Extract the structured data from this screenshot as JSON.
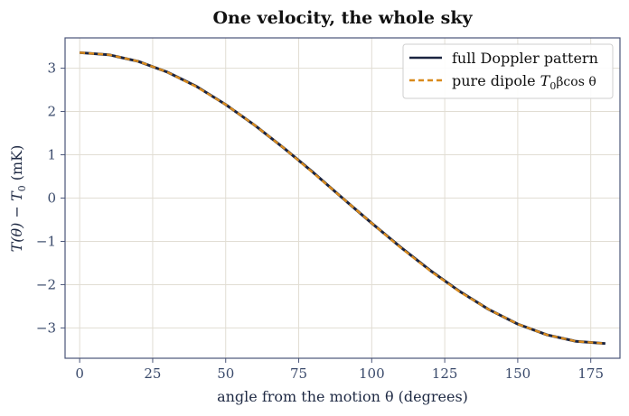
{
  "chart_data": {
    "type": "line",
    "title": "One velocity, the whole sky",
    "xlabel": "angle from the motion θ (degrees)",
    "ylabel_parts": [
      "T(θ) − T",
      "0",
      " (mK)"
    ],
    "xlim": [
      -5,
      185
    ],
    "ylim": [
      -3.7,
      3.7
    ],
    "xticks": [
      0,
      25,
      50,
      75,
      100,
      125,
      150,
      175
    ],
    "yticks": [
      -3,
      -2,
      -1,
      0,
      1,
      2,
      3
    ],
    "ytick_labels": [
      "−3",
      "−2",
      "−1",
      "0",
      "1",
      "2",
      "3"
    ],
    "grid": true,
    "legend_position": "top-right",
    "x": [
      0,
      10,
      20,
      30,
      40,
      50,
      60,
      70,
      80,
      90,
      100,
      110,
      120,
      130,
      140,
      150,
      160,
      170,
      180
    ],
    "series": [
      {
        "name": "full Doppler pattern",
        "style": "solid",
        "color": "#1b2440",
        "values": [
          3.36,
          3.31,
          3.16,
          2.91,
          2.58,
          2.16,
          1.68,
          1.15,
          0.59,
          0.0,
          -0.58,
          -1.14,
          -1.67,
          -2.15,
          -2.57,
          -2.91,
          -3.16,
          -3.31,
          -3.36
        ]
      },
      {
        "name": "pure dipole T0βcos θ",
        "legend_parts": [
          "pure dipole ",
          "T",
          "0",
          "βcos θ"
        ],
        "style": "dashed",
        "color": "#d98a1c",
        "values": [
          3.36,
          3.31,
          3.16,
          2.91,
          2.57,
          2.16,
          1.68,
          1.15,
          0.58,
          0.0,
          -0.58,
          -1.15,
          -1.68,
          -2.16,
          -2.57,
          -2.91,
          -3.16,
          -3.31,
          -3.36
        ]
      }
    ]
  }
}
